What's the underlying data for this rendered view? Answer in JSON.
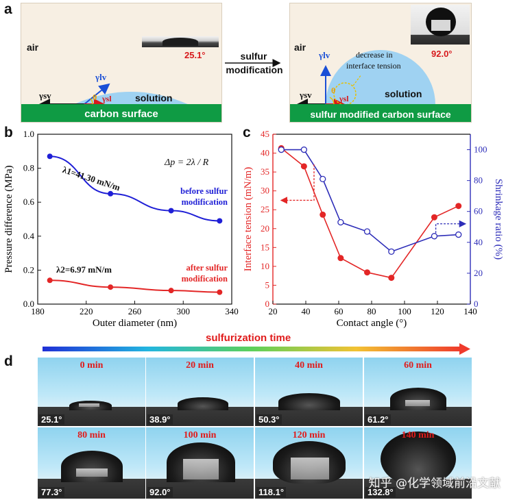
{
  "panel_labels": {
    "a": "a",
    "b": "b",
    "c": "c",
    "d": "d"
  },
  "panel_a": {
    "left": {
      "air": "air",
      "angle": "25.1°",
      "gamma_lv": "γlv",
      "gamma_sv": "γsv",
      "gamma_sl": "γsl",
      "theta": "θ",
      "solution": "solution",
      "surface": "carbon surface"
    },
    "arrow_label_1": "sulfur",
    "arrow_label_2": "modification",
    "right": {
      "air": "air",
      "angle": "92.0°",
      "gamma_lv": "γlv",
      "gamma_sv": "γsv",
      "gamma_sl": "γsl",
      "theta": "θ",
      "note_1": "decrease in",
      "note_2": "interface tension",
      "solution": "solution",
      "surface": "sulfur modified carbon surface"
    },
    "colors": {
      "bg": "#f7efe3",
      "green": "#0f9b44",
      "drop": "#9fd2f2",
      "angle": "#d7191c"
    }
  },
  "panel_b": {
    "equation": "Δp = 2λ / R",
    "lambda1": "λ1=41.30 mN/m",
    "lambda2": "λ2=6.97 mN/m",
    "before_1": "before sulfur",
    "before_2": "modification",
    "after_1": "after sulfur",
    "after_2": "modification"
  },
  "panel_c": {
    "arrow_left_color": "#e32626",
    "arrow_right_color": "#2d2db8"
  },
  "chart_data": [
    {
      "type": "line",
      "xlabel": "Outer diameter (nm)",
      "ylabel": "Pressure difference (MPa)",
      "xlim": [
        180,
        340
      ],
      "ylim": [
        0.0,
        1.0
      ],
      "xticks": [
        "180",
        "220",
        "260",
        "300",
        "340"
      ],
      "yticks": [
        "0.0",
        "0.2",
        "0.4",
        "0.6",
        "0.8",
        "1.0"
      ],
      "x": [
        190,
        240,
        290,
        330
      ],
      "series": [
        {
          "name": "before sulfur modification",
          "color": "#1f1fd6",
          "values": [
            0.87,
            0.65,
            0.55,
            0.49
          ]
        },
        {
          "name": "after sulfur modification",
          "color": "#e32626",
          "values": [
            0.14,
            0.1,
            0.08,
            0.07
          ]
        }
      ]
    },
    {
      "type": "line",
      "xlabel": "Contact angle (°)",
      "ylabel": "Interface tension (mN/m)",
      "ylabel_right": "Shrinkage ratio (%)",
      "xlim": [
        20,
        140
      ],
      "ylim": [
        0,
        45
      ],
      "ylim_right": [
        0,
        110
      ],
      "xticks": [
        "20",
        "40",
        "60",
        "80",
        "100",
        "120",
        "140"
      ],
      "yticks": [
        "0",
        "5",
        "10",
        "15",
        "20",
        "25",
        "30",
        "35",
        "40",
        "45"
      ],
      "yticks_right": [
        "0",
        "20",
        "40",
        "60",
        "80",
        "100"
      ],
      "series": [
        {
          "name": "Interface tension",
          "axis": "left",
          "color": "#e32626",
          "marker": "filled",
          "x": [
            25.1,
            38.9,
            50.3,
            61.2,
            77.3,
            92.0,
            118.1,
            132.8
          ],
          "values": [
            41.3,
            36.5,
            23.7,
            12.2,
            8.4,
            6.97,
            23.0,
            26.0
          ]
        },
        {
          "name": "Shrinkage ratio",
          "axis": "right",
          "color": "#2d2db8",
          "marker": "open",
          "x": [
            25.1,
            38.9,
            50.3,
            61.2,
            77.3,
            92.0,
            118.1,
            132.8
          ],
          "values": [
            100,
            100,
            81,
            53,
            47,
            34,
            44,
            45
          ]
        }
      ]
    }
  ],
  "panel_d": {
    "title": "sulfurization time",
    "tiles": [
      {
        "time": "0 min",
        "angle": "25.1°"
      },
      {
        "time": "20 min",
        "angle": "38.9°"
      },
      {
        "time": "40 min",
        "angle": "50.3°"
      },
      {
        "time": "60 min",
        "angle": "61.2°"
      },
      {
        "time": "80 min",
        "angle": "77.3°"
      },
      {
        "time": "100 min",
        "angle": "92.0°"
      },
      {
        "time": "120 min",
        "angle": "118.1°"
      },
      {
        "time": "140 min",
        "angle": "132.8°"
      }
    ],
    "watermark": "知乎 @化学领域前沿文献"
  }
}
